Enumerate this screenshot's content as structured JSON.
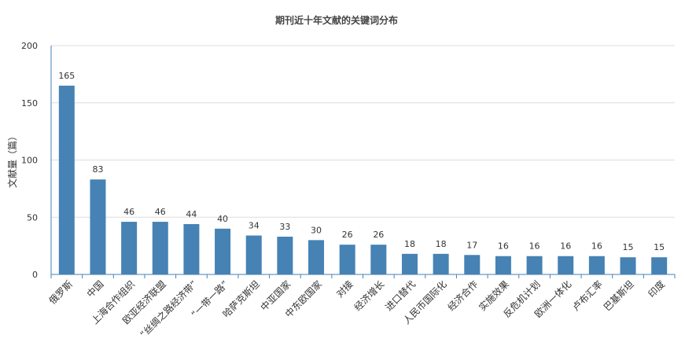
{
  "chart_data": {
    "type": "bar",
    "title": "期刊近十年文献的关键词分布",
    "xlabel": "",
    "ylabel": "文献量（篇）",
    "ylim": [
      0,
      200
    ],
    "yticks": [
      0,
      50,
      100,
      150,
      200
    ],
    "grid": true,
    "bar_color": "#4682b4",
    "categories": [
      "俄罗斯",
      "中国",
      "上海合作组织",
      "欧亚经济联盟",
      "“丝绸之路经济带”",
      "“一带一路”",
      "哈萨克斯坦",
      "中亚国家",
      "中东欧国家",
      "对接",
      "经济增长",
      "进口替代",
      "人民币国际化",
      "经济合作",
      "实施效果",
      "反危机计划",
      "欧洲一体化",
      "卢布汇率",
      "巴基斯坦",
      "印度"
    ],
    "values": [
      165,
      83,
      46,
      46,
      44,
      40,
      34,
      33,
      30,
      26,
      26,
      18,
      18,
      17,
      16,
      16,
      16,
      16,
      15,
      15
    ]
  }
}
